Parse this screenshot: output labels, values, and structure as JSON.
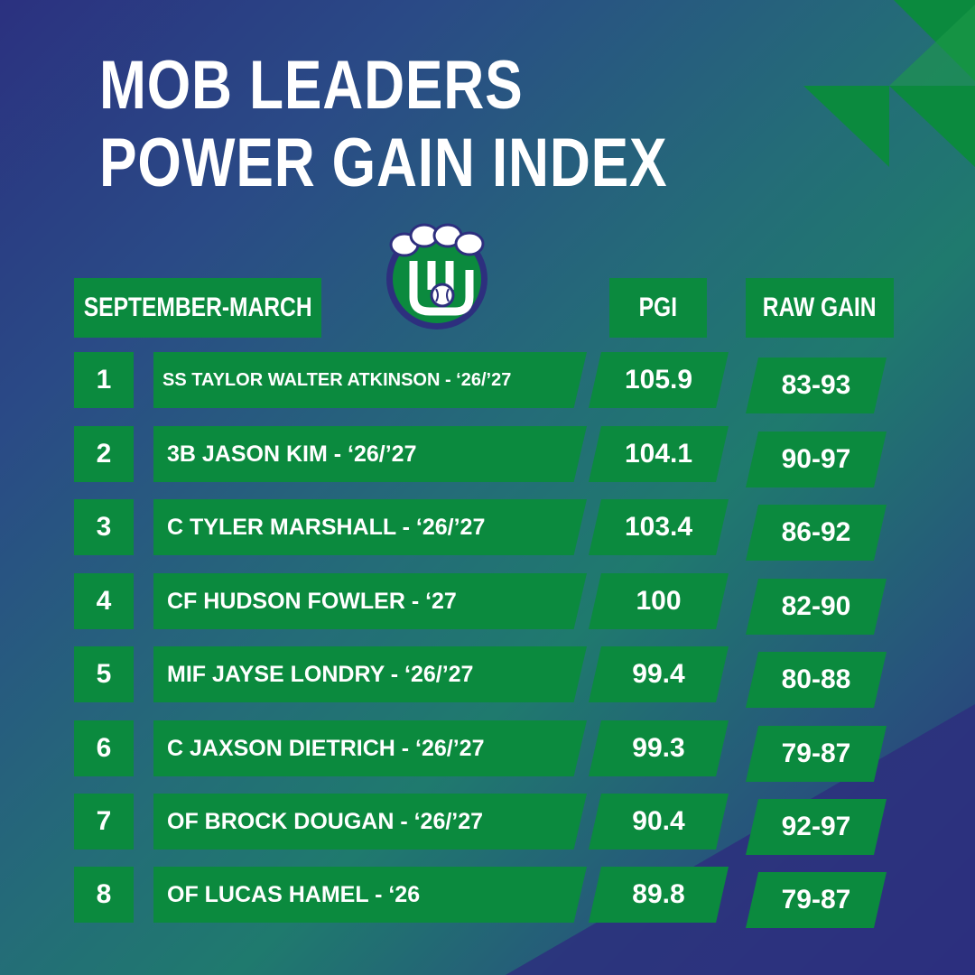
{
  "title": {
    "line1": "MOB LEADERS",
    "line2": "POWER GAIN INDEX"
  },
  "headers": {
    "period": "SEPTEMBER-MARCH",
    "pgi": "PGI",
    "raw_gain": "RAW GAIN"
  },
  "logo": {
    "icon": "baseball-glove-logo-icon"
  },
  "rows": [
    {
      "rank": "1",
      "player": "SS TAYLOR WALTER ATKINSON - ‘26/’27",
      "pgi": "105.9",
      "raw_gain": "83-93"
    },
    {
      "rank": "2",
      "player": "3B JASON KIM - ‘26/’27",
      "pgi": "104.1",
      "raw_gain": "90-97"
    },
    {
      "rank": "3",
      "player": "C TYLER MARSHALL - ‘26/’27",
      "pgi": "103.4",
      "raw_gain": "86-92"
    },
    {
      "rank": "4",
      "player": "CF HUDSON FOWLER - ‘27",
      "pgi": "100",
      "raw_gain": "82-90"
    },
    {
      "rank": "5",
      "player": "MIF JAYSE LONDRY - ‘26/’27",
      "pgi": "99.4",
      "raw_gain": "80-88"
    },
    {
      "rank": "6",
      "player": "C JAXSON DIETRICH - ‘26/’27",
      "pgi": "99.3",
      "raw_gain": "79-87"
    },
    {
      "rank": "7",
      "player": "OF BROCK DOUGAN - ‘26/’27",
      "pgi": "90.4",
      "raw_gain": "92-97"
    },
    {
      "rank": "8",
      "player": "OF LUCAS HAMEL - ‘26",
      "pgi": "89.8",
      "raw_gain": "79-87"
    }
  ],
  "colors": {
    "accent_green": "#0b8a3e",
    "background_navy": "#2b3180",
    "background_teal": "#1f7a6e",
    "text": "#ffffff"
  }
}
